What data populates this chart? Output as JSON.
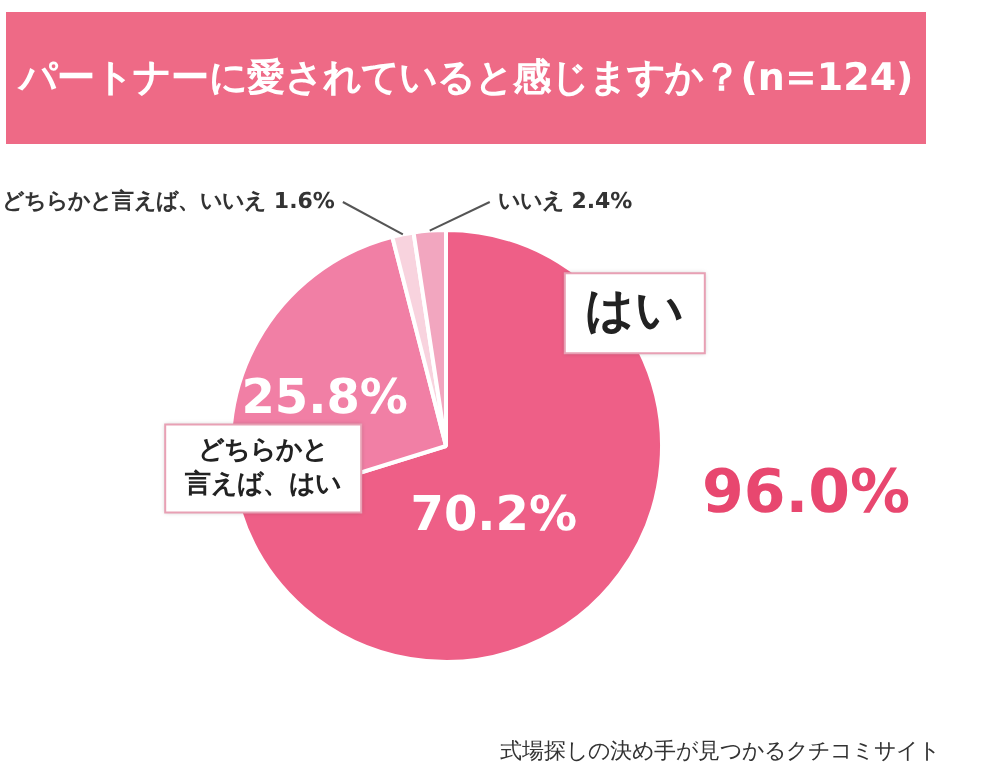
{
  "chart_data": {
    "type": "pie",
    "title": "パートナーに愛されていると感じますか？(n=124)",
    "categories": [
      "はい",
      "どちらかと言えば、はい",
      "どちらかと言えば、いいえ",
      "いいえ"
    ],
    "values": [
      70.2,
      25.8,
      1.6,
      2.4
    ],
    "colors": [
      "#ee5f87",
      "#f17fa5",
      "#f8d3de",
      "#f2a6bf"
    ],
    "value_labels": [
      "70.2%",
      "25.8%",
      "1.6%",
      "2.4%"
    ],
    "legend": false,
    "annotations": [
      "96.0%",
      "式場探しの決め手が見つかるクチコミサイト"
    ]
  }
}
